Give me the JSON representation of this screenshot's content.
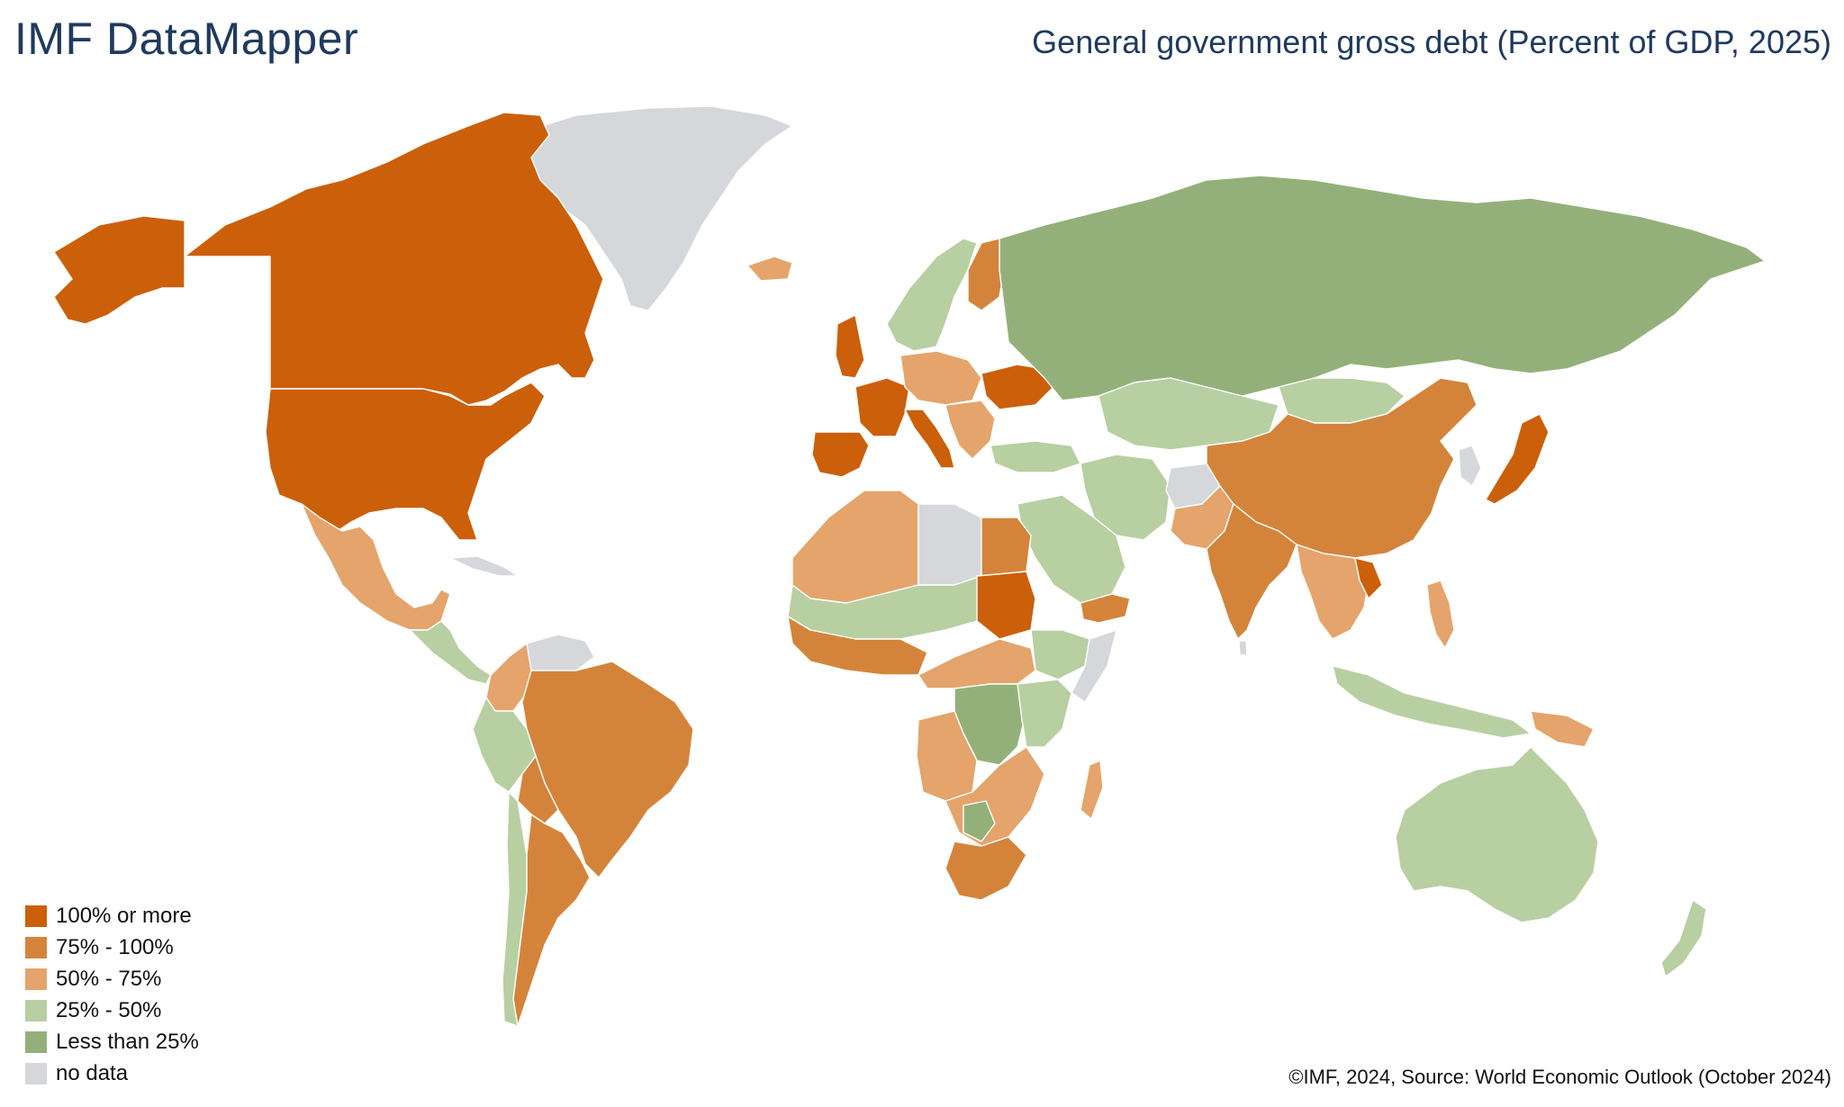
{
  "header": {
    "app_title": "IMF DataMapper",
    "map_title": "General government gross debt (Percent of GDP, 2025)"
  },
  "legend": {
    "items": [
      {
        "label": "100% or more",
        "color": "#cc5f0a"
      },
      {
        "label": "75% - 100%",
        "color": "#d4843a"
      },
      {
        "label": "50% - 75%",
        "color": "#e4a46b"
      },
      {
        "label": "25% - 50%",
        "color": "#b8cfa2"
      },
      {
        "label": "Less than 25%",
        "color": "#94b07a"
      },
      {
        "label": "no data",
        "color": "#d6d7db"
      }
    ]
  },
  "footer": {
    "source": "©IMF, 2024, Source: World Economic Outlook (October 2024)"
  },
  "map": {
    "colors": {
      "c100": "#cc5f0a",
      "c75": "#d4843a",
      "c50": "#e4a46b",
      "c25": "#b8cfa2",
      "c0": "#94b07a",
      "nodata": "#d6d7db"
    }
  }
}
